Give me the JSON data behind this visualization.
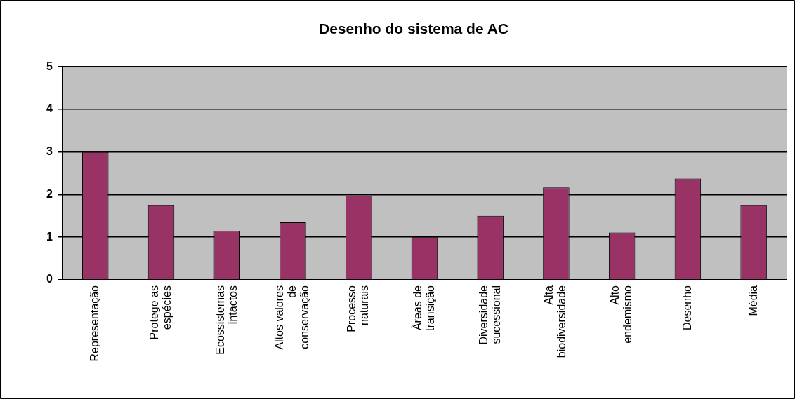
{
  "chart_data": {
    "type": "bar",
    "title": "Desenho do sistema de AC",
    "categories": [
      "Representação",
      "Protege as espécies",
      "Ecossistemas intactos",
      "Altos valores de conservação",
      "Processo naturais",
      "Àreas de transição",
      "Diversidade sucessional",
      "Alta biodiversidade",
      "Alto endemismo",
      "Desenho",
      "Média"
    ],
    "values": [
      3.0,
      1.75,
      1.15,
      1.35,
      1.98,
      1.0,
      1.5,
      2.17,
      1.11,
      2.38,
      1.75
    ],
    "color": "#993366",
    "ylim": [
      0,
      5
    ],
    "yticks": [
      0,
      1,
      2,
      3,
      4,
      5
    ],
    "grid": "y",
    "legend": false
  }
}
